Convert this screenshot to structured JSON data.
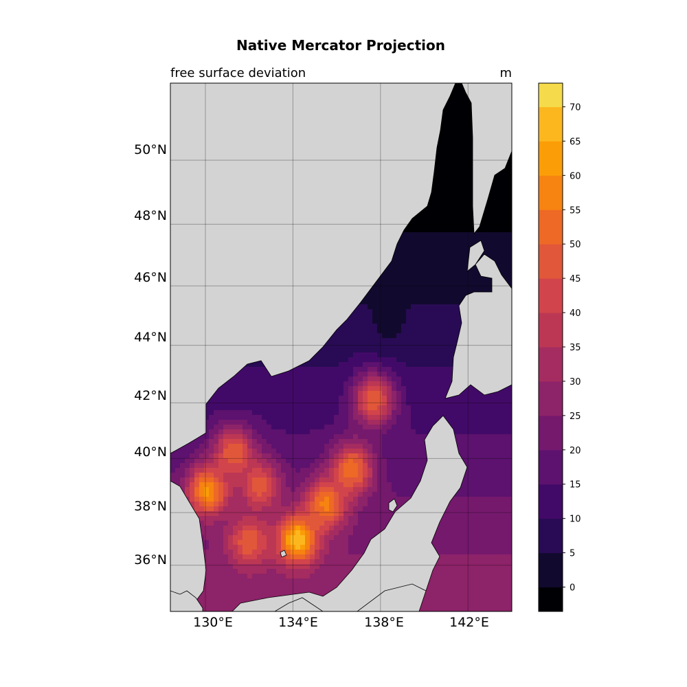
{
  "chart_data": {
    "type": "heatmap",
    "title": "Native Mercator Projection",
    "subtitle_left": "free surface deviation",
    "subtitle_right": "m",
    "projection": "Mercator",
    "extent": {
      "lon": [
        128.4,
        144.0
      ],
      "lat": [
        34.2,
        52.3
      ]
    },
    "grid": true,
    "x_ticks": [
      "130°E",
      "134°E",
      "138°E",
      "142°E"
    ],
    "y_ticks": [
      "36°N",
      "38°N",
      "40°N",
      "42°N",
      "44°N",
      "46°N",
      "48°N",
      "50°N"
    ],
    "colorbar": {
      "position": "right",
      "ticks": [
        "0",
        "5",
        "10",
        "15",
        "20",
        "25",
        "30",
        "35",
        "40",
        "45",
        "50",
        "55",
        "60",
        "65",
        "70"
      ],
      "levels": [
        -5,
        0,
        5,
        10,
        15,
        20,
        25,
        30,
        35,
        40,
        45,
        50,
        55,
        60,
        65,
        70,
        75
      ],
      "colors": [
        "#000004",
        "#120a2e",
        "#280b54",
        "#420a68",
        "#5c126e",
        "#75196d",
        "#8d2369",
        "#a52c60",
        "#bc3754",
        "#d2444b",
        "#e1573a",
        "#ed6925",
        "#f78311",
        "#fb9d07",
        "#fcb71e",
        "#f5db4b",
        "#fcffa4"
      ]
    },
    "field": {
      "base_value": 17,
      "hotspots": [
        {
          "lon": 130.1,
          "lat": 38.8,
          "value": 61
        },
        {
          "lon": 134.2,
          "lat": 37.0,
          "value": 70
        },
        {
          "lon": 135.5,
          "lat": 38.3,
          "value": 57
        },
        {
          "lon": 136.7,
          "lat": 39.6,
          "value": 55
        },
        {
          "lon": 137.7,
          "lat": 42.1,
          "value": 50
        },
        {
          "lon": 131.3,
          "lat": 40.2,
          "value": 50
        },
        {
          "lon": 132.0,
          "lat": 36.9,
          "value": 50
        },
        {
          "lon": 132.5,
          "lat": 39.0,
          "value": 48
        },
        {
          "lon": 138.4,
          "lat": 44.8,
          "value": 4
        },
        {
          "lon": 142.6,
          "lat": 45.8,
          "value": 4
        }
      ]
    }
  }
}
